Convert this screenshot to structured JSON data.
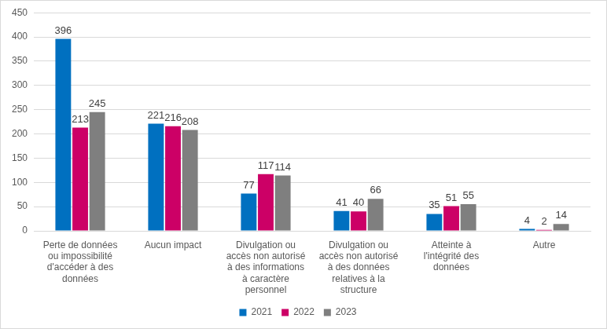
{
  "chart_data": {
    "type": "bar",
    "categories": [
      "Perte de données ou impossibilité d'accéder à des données",
      "Aucun impact",
      "Divulgation ou accès non autorisé à des informations à caractère personnel",
      "Divulgation ou accès non autorisé à des données relatives à la structure",
      "Atteinte à l'intégrité des données",
      "Autre"
    ],
    "series": [
      {
        "name": "2021",
        "color": "#0070c0",
        "values": [
          396,
          221,
          77,
          41,
          35,
          4
        ]
      },
      {
        "name": "2022",
        "color": "#cc0066",
        "values": [
          213,
          216,
          117,
          40,
          51,
          2
        ]
      },
      {
        "name": "2023",
        "color": "#7f7f7f",
        "values": [
          245,
          208,
          114,
          66,
          55,
          14
        ]
      }
    ],
    "ylim": [
      0,
      450
    ],
    "yticks": [
      0,
      50,
      100,
      150,
      200,
      250,
      300,
      350,
      400,
      450
    ],
    "grid": true,
    "legend": "bottom",
    "data_labels": true
  }
}
